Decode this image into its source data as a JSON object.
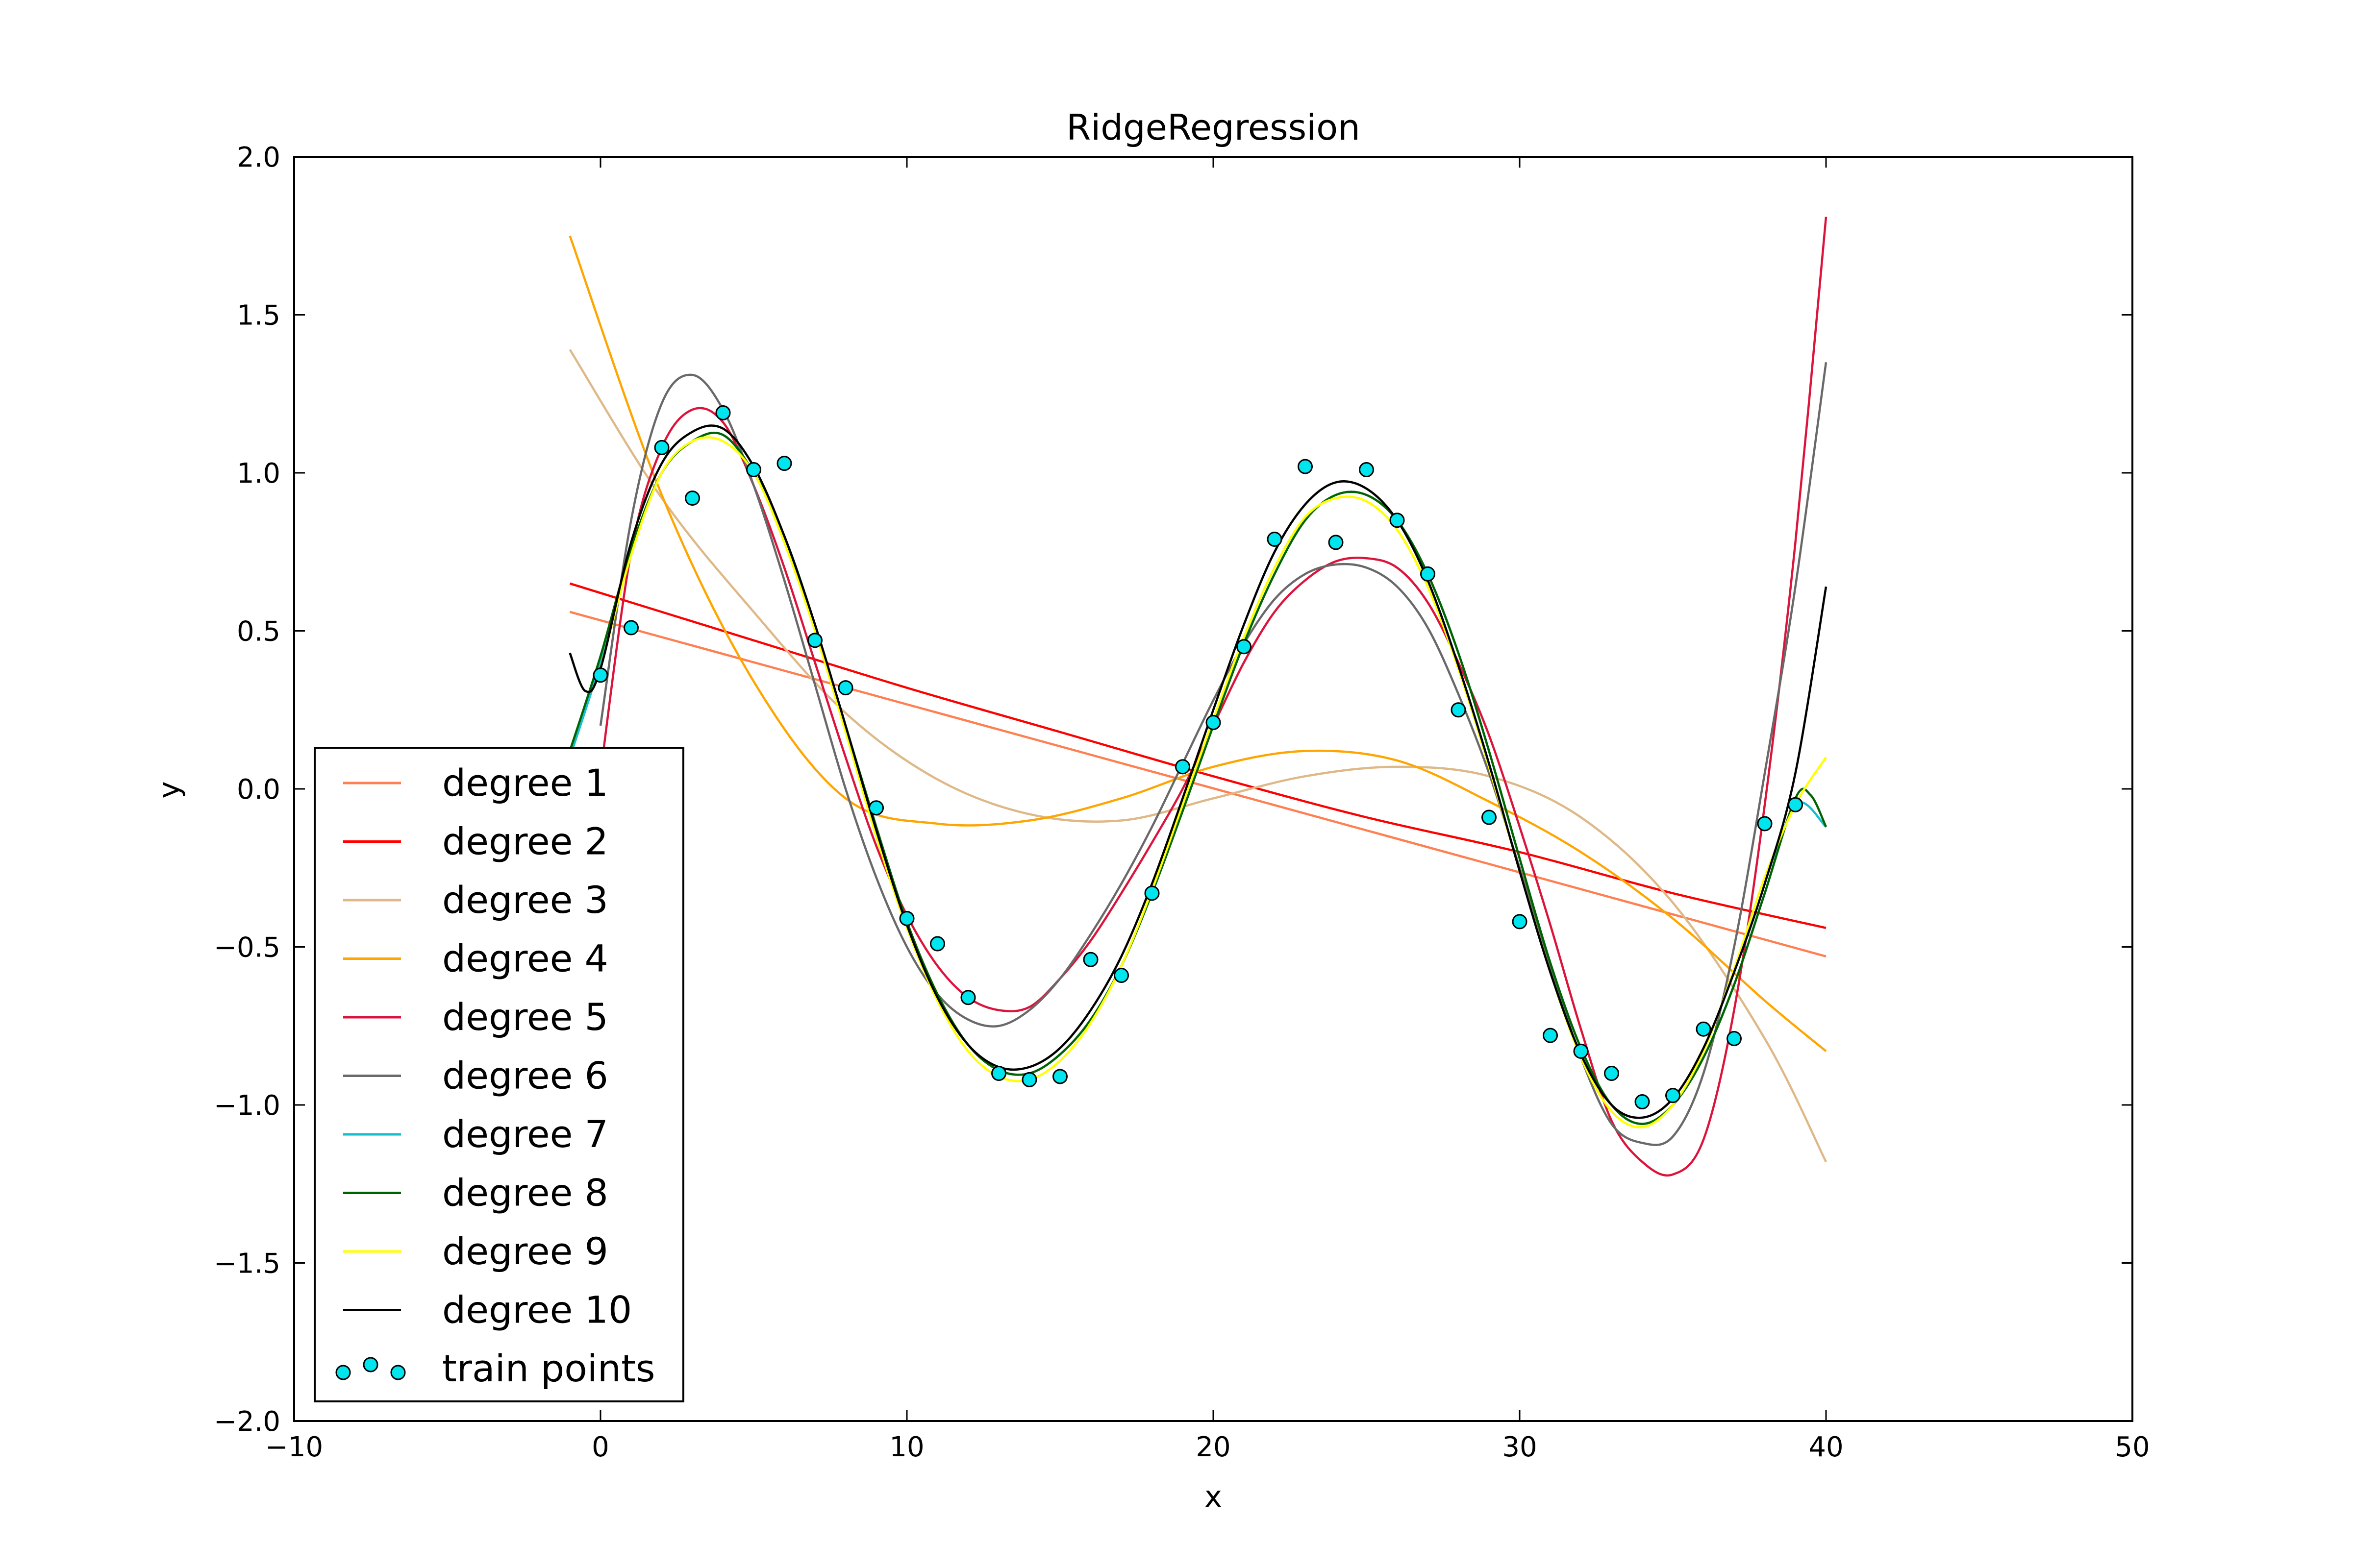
{
  "chart_data": {
    "type": "line",
    "title": "RidgeRegression",
    "xlabel": "x",
    "ylabel": "y",
    "xlim": [
      -10,
      50
    ],
    "ylim": [
      -2.0,
      2.0
    ],
    "xticks": [
      -10,
      0,
      10,
      20,
      30,
      40,
      50
    ],
    "xtick_labels": [
      "−10",
      "0",
      "10",
      "20",
      "30",
      "40",
      "50"
    ],
    "yticks": [
      -2.0,
      -1.5,
      -1.0,
      -0.5,
      0.0,
      0.5,
      1.0,
      1.5,
      2.0
    ],
    "ytick_labels": [
      "−2.0",
      "−1.5",
      "−1.0",
      "−0.5",
      "0.0",
      "0.5",
      "1.0",
      "1.5",
      "2.0"
    ],
    "grid": false,
    "legend_position": "lower-left",
    "series": [
      {
        "name": "degree 1",
        "color": "#ff7f50",
        "x": [
          -1,
          40
        ],
        "y": [
          0.56,
          -0.53
        ]
      },
      {
        "name": "degree 2",
        "color": "#ff0000",
        "x": [
          -1,
          5,
          10,
          15,
          20,
          25,
          30,
          35,
          40
        ],
        "y": [
          0.65,
          0.47,
          0.32,
          0.18,
          0.04,
          -0.09,
          -0.2,
          -0.33,
          -0.44
        ]
      },
      {
        "name": "degree 3",
        "color": "#deb887",
        "x": [
          -1,
          2,
          5,
          8,
          11,
          14,
          17,
          20,
          23,
          26,
          29,
          32,
          35,
          38,
          40
        ],
        "y": [
          1.39,
          0.92,
          0.56,
          0.24,
          0.03,
          -0.08,
          -0.1,
          -0.03,
          0.04,
          0.07,
          0.04,
          -0.09,
          -0.36,
          -0.79,
          -1.18
        ]
      },
      {
        "name": "degree 4",
        "color": "#ffa500",
        "x": [
          -1,
          2,
          5,
          8,
          11,
          14,
          17,
          20,
          23,
          26,
          29,
          32,
          35,
          38,
          40
        ],
        "y": [
          1.75,
          0.93,
          0.34,
          -0.03,
          -0.11,
          -0.1,
          -0.03,
          0.07,
          0.12,
          0.09,
          -0.04,
          -0.2,
          -0.41,
          -0.67,
          -0.83
        ]
      },
      {
        "name": "degree 5",
        "color": "#dc143c",
        "x": [
          0,
          1,
          2,
          3,
          4,
          5,
          6,
          7,
          8,
          9,
          10,
          11,
          12,
          13,
          14,
          15,
          16,
          17,
          18,
          19,
          20,
          21,
          22,
          23,
          24,
          25,
          26,
          27,
          28,
          29,
          30,
          31,
          32,
          33,
          34,
          35,
          36,
          37,
          38,
          39,
          40
        ],
        "y": [
          0.05,
          0.75,
          1.08,
          1.2,
          1.16,
          0.96,
          0.7,
          0.4,
          0.1,
          -0.18,
          -0.4,
          -0.56,
          -0.66,
          -0.7,
          -0.69,
          -0.6,
          -0.48,
          -0.33,
          -0.17,
          0.0,
          0.2,
          0.4,
          0.56,
          0.66,
          0.72,
          0.73,
          0.7,
          0.59,
          0.4,
          0.17,
          -0.12,
          -0.43,
          -0.76,
          -1.05,
          -1.18,
          -1.22,
          -1.11,
          -0.7,
          -0.05,
          0.78,
          1.81
        ]
      },
      {
        "name": "degree 6",
        "color": "#696969",
        "x": [
          0,
          1,
          2,
          3,
          4,
          5,
          6,
          7,
          8,
          9,
          10,
          11,
          12,
          13,
          14,
          15,
          16,
          17,
          18,
          19,
          20,
          21,
          22,
          23,
          24,
          25,
          26,
          27,
          28,
          29,
          30,
          31,
          32,
          33,
          34,
          35,
          36,
          37,
          38,
          39,
          40
        ],
        "y": [
          0.2,
          0.85,
          1.22,
          1.31,
          1.2,
          0.96,
          0.66,
          0.33,
          0.0,
          -0.28,
          -0.5,
          -0.65,
          -0.73,
          -0.75,
          -0.7,
          -0.6,
          -0.46,
          -0.3,
          -0.12,
          0.08,
          0.28,
          0.46,
          0.6,
          0.68,
          0.71,
          0.7,
          0.64,
          0.51,
          0.3,
          0.05,
          -0.25,
          -0.56,
          -0.85,
          -1.06,
          -1.12,
          -1.1,
          -0.9,
          -0.5,
          0.05,
          0.64,
          1.35
        ]
      },
      {
        "name": "degree 7",
        "color": "#17becf",
        "x": [
          -1,
          0,
          1,
          2,
          3,
          4,
          5,
          6,
          7,
          8,
          9,
          10,
          11,
          12,
          13,
          14,
          15,
          16,
          17,
          18,
          19,
          20,
          21,
          22,
          23,
          24,
          25,
          26,
          27,
          28,
          29,
          30,
          31,
          32,
          33,
          34,
          35,
          36,
          37,
          38,
          39,
          40
        ],
        "y": [
          0.1,
          0.4,
          0.75,
          1.0,
          1.1,
          1.12,
          1.0,
          0.8,
          0.52,
          0.2,
          -0.12,
          -0.42,
          -0.65,
          -0.81,
          -0.89,
          -0.9,
          -0.84,
          -0.73,
          -0.56,
          -0.33,
          -0.07,
          0.2,
          0.46,
          0.68,
          0.85,
          0.93,
          0.93,
          0.85,
          0.68,
          0.43,
          0.12,
          -0.22,
          -0.55,
          -0.82,
          -1.0,
          -1.06,
          -1.0,
          -0.85,
          -0.62,
          -0.33,
          -0.05,
          -0.12
        ]
      },
      {
        "name": "degree 8",
        "color": "#006400",
        "x": [
          -1,
          0,
          1,
          2,
          3,
          4,
          5,
          6,
          7,
          8,
          9,
          10,
          11,
          12,
          13,
          14,
          15,
          16,
          17,
          18,
          19,
          20,
          21,
          22,
          23,
          24,
          25,
          26,
          27,
          28,
          29,
          30,
          31,
          32,
          33,
          34,
          35,
          36,
          37,
          38,
          39,
          39.5,
          40
        ],
        "y": [
          0.12,
          0.42,
          0.76,
          1.0,
          1.1,
          1.12,
          1.0,
          0.8,
          0.52,
          0.2,
          -0.12,
          -0.42,
          -0.65,
          -0.81,
          -0.89,
          -0.9,
          -0.84,
          -0.73,
          -0.56,
          -0.33,
          -0.07,
          0.2,
          0.46,
          0.68,
          0.85,
          0.93,
          0.93,
          0.85,
          0.68,
          0.43,
          0.12,
          -0.22,
          -0.55,
          -0.82,
          -1.0,
          -1.06,
          -1.0,
          -0.85,
          -0.62,
          -0.33,
          -0.03,
          -0.02,
          -0.12
        ]
      },
      {
        "name": "degree 9",
        "color": "#ffff00",
        "x": [
          0,
          1,
          2,
          3,
          4,
          5,
          6,
          7,
          8,
          9,
          10,
          11,
          12,
          13,
          14,
          15,
          16,
          17,
          18,
          19,
          20,
          21,
          22,
          23,
          24,
          25,
          26,
          27,
          28,
          29,
          30,
          31,
          32,
          33,
          34,
          35,
          36,
          37,
          38,
          39,
          40
        ],
        "y": [
          0.38,
          0.74,
          1.0,
          1.1,
          1.1,
          1.0,
          0.78,
          0.5,
          0.18,
          -0.15,
          -0.44,
          -0.67,
          -0.83,
          -0.91,
          -0.92,
          -0.86,
          -0.74,
          -0.56,
          -0.32,
          -0.05,
          0.22,
          0.48,
          0.7,
          0.86,
          0.92,
          0.91,
          0.82,
          0.64,
          0.38,
          0.07,
          -0.26,
          -0.58,
          -0.85,
          -1.02,
          -1.07,
          -1.0,
          -0.83,
          -0.57,
          -0.28,
          -0.05,
          0.1
        ]
      },
      {
        "name": "degree 10",
        "color": "#000000",
        "x": [
          -1,
          -0.5,
          0,
          1,
          2,
          3,
          4,
          5,
          6,
          7,
          8,
          9,
          10,
          11,
          12,
          13,
          14,
          15,
          16,
          17,
          18,
          19,
          20,
          21,
          22,
          23,
          24,
          25,
          26,
          27,
          28,
          29,
          30,
          31,
          32,
          33,
          34,
          35,
          36,
          37,
          38,
          39,
          40
        ],
        "y": [
          0.43,
          0.31,
          0.38,
          0.78,
          1.03,
          1.13,
          1.14,
          1.02,
          0.8,
          0.52,
          0.2,
          -0.13,
          -0.43,
          -0.66,
          -0.81,
          -0.88,
          -0.88,
          -0.82,
          -0.7,
          -0.53,
          -0.3,
          -0.03,
          0.25,
          0.52,
          0.75,
          0.9,
          0.97,
          0.95,
          0.85,
          0.66,
          0.39,
          0.08,
          -0.26,
          -0.58,
          -0.84,
          -1.0,
          -1.04,
          -0.98,
          -0.82,
          -0.58,
          -0.3,
          0.05,
          0.64
        ]
      }
    ],
    "scatter": {
      "name": "train points",
      "color": "#00e5ee",
      "edge_color": "#000000",
      "x": [
        0,
        1,
        2,
        3,
        4,
        5,
        6,
        7,
        8,
        9,
        10,
        11,
        12,
        13,
        14,
        15,
        16,
        17,
        18,
        19,
        20,
        21,
        22,
        23,
        24,
        25,
        26,
        27,
        28,
        29,
        30,
        31,
        32,
        33,
        34,
        35,
        36,
        37,
        38,
        39
      ],
      "y": [
        0.36,
        0.51,
        1.08,
        0.92,
        1.19,
        1.01,
        1.03,
        0.47,
        0.32,
        -0.06,
        -0.41,
        -0.49,
        -0.66,
        -0.9,
        -0.92,
        -0.91,
        -0.54,
        -0.59,
        -0.33,
        0.07,
        0.21,
        0.45,
        0.79,
        1.02,
        0.78,
        1.01,
        0.85,
        0.68,
        0.25,
        -0.09,
        -0.42,
        -0.78,
        -0.83,
        -0.9,
        -0.99,
        -0.97,
        -0.76,
        -0.79,
        -0.11,
        -0.05
      ]
    }
  }
}
